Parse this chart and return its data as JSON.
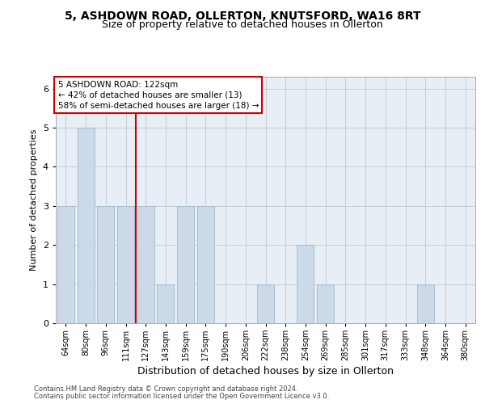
{
  "title1": "5, ASHDOWN ROAD, OLLERTON, KNUTSFORD, WA16 8RT",
  "title2": "Size of property relative to detached houses in Ollerton",
  "xlabel": "Distribution of detached houses by size in Ollerton",
  "ylabel": "Number of detached properties",
  "categories": [
    "64sqm",
    "80sqm",
    "96sqm",
    "111sqm",
    "127sqm",
    "143sqm",
    "159sqm",
    "175sqm",
    "190sqm",
    "206sqm",
    "222sqm",
    "238sqm",
    "254sqm",
    "269sqm",
    "285sqm",
    "301sqm",
    "317sqm",
    "333sqm",
    "348sqm",
    "364sqm",
    "380sqm"
  ],
  "values": [
    3,
    5,
    3,
    3,
    3,
    1,
    3,
    3,
    0,
    0,
    1,
    0,
    2,
    1,
    0,
    0,
    0,
    0,
    1,
    0,
    0
  ],
  "bar_color": "#ccd9e8",
  "bar_edge_color": "#a0b8cc",
  "vline_x_index": 3.5,
  "vline_color": "#cc0000",
  "ann_line1": "5 ASHDOWN ROAD: 122sqm",
  "ann_line2": "← 42% of detached houses are smaller (13)",
  "ann_line3": "58% of semi-detached houses are larger (18) →",
  "box_edge_color": "#cc0000",
  "ylim": [
    0,
    6.3
  ],
  "yticks": [
    0,
    1,
    2,
    3,
    4,
    5,
    6
  ],
  "footer1": "Contains HM Land Registry data © Crown copyright and database right 2024.",
  "footer2": "Contains public sector information licensed under the Open Government Licence v3.0.",
  "bg_color": "#ffffff",
  "plot_bg_color": "#e8eef5",
  "grid_color": "#c5cdd6",
  "title1_fontsize": 10,
  "title2_fontsize": 9,
  "xlabel_fontsize": 9,
  "ylabel_fontsize": 8,
  "tick_fontsize": 7,
  "ann_fontsize": 7.5,
  "footer_fontsize": 6
}
